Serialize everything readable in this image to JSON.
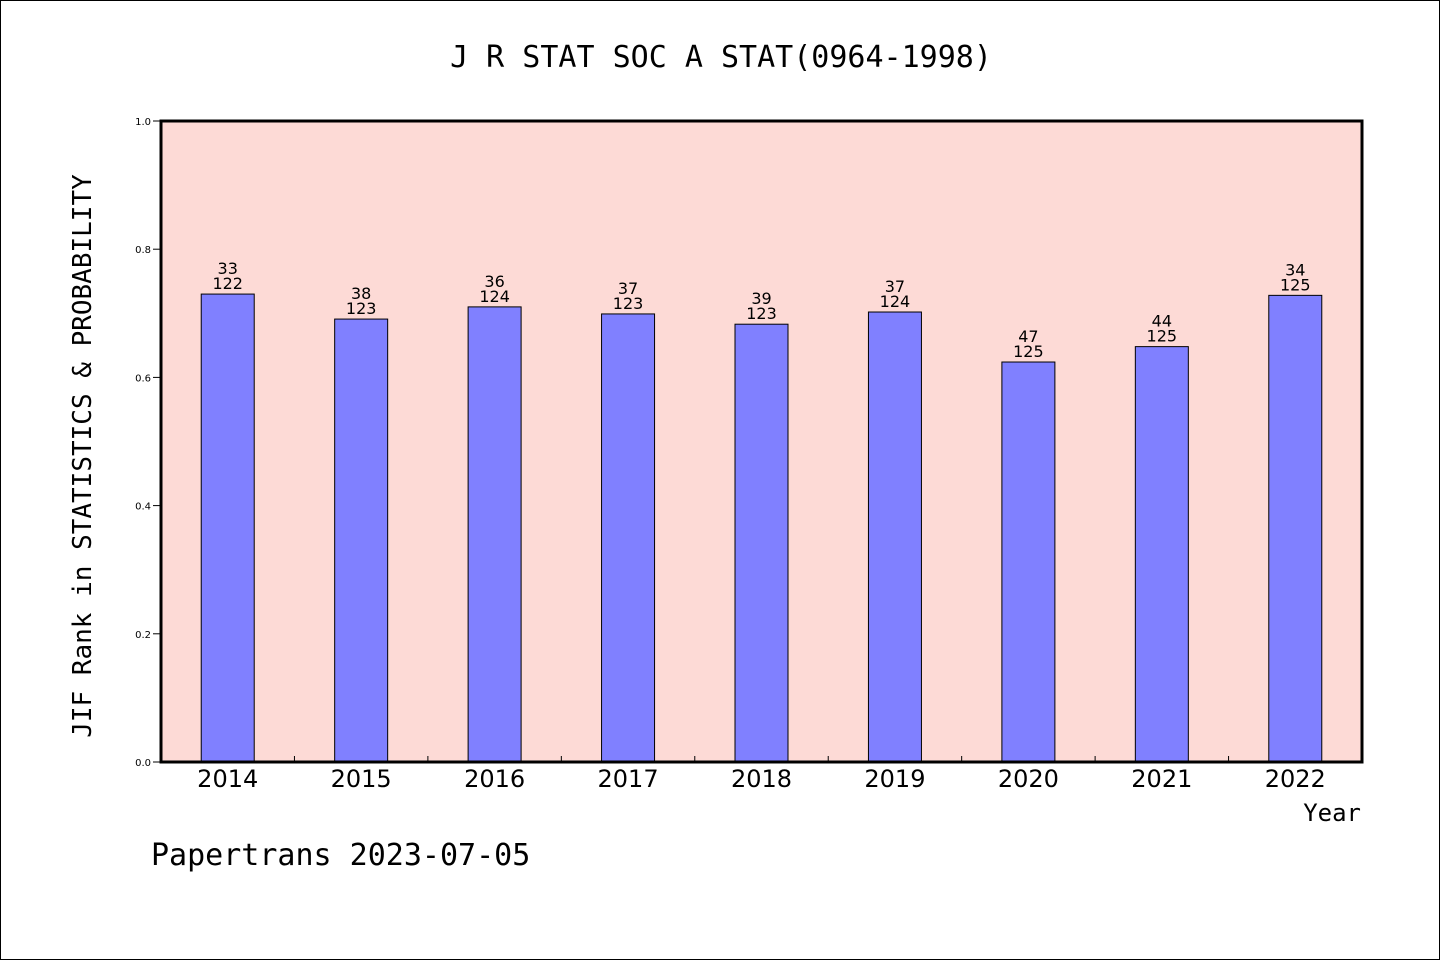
{
  "chart_data": {
    "type": "bar",
    "title": "J R STAT SOC A STAT(0964-1998)",
    "xlabel": "Year",
    "ylabel": "JIF Rank in STATISTICS & PROBABILITY",
    "ylim": [
      0,
      1.0
    ],
    "yticks": [
      "0.0",
      "0.2",
      "0.4",
      "0.6",
      "0.8",
      "1.0"
    ],
    "grid": false,
    "categories": [
      "2014",
      "2015",
      "2016",
      "2017",
      "2018",
      "2019",
      "2020",
      "2021",
      "2022"
    ],
    "values": [
      0.73,
      0.691,
      0.71,
      0.699,
      0.683,
      0.702,
      0.624,
      0.648,
      0.728
    ],
    "ranks": [
      "33",
      "38",
      "36",
      "37",
      "39",
      "37",
      "47",
      "44",
      "34"
    ],
    "totals": [
      "122",
      "123",
      "124",
      "123",
      "123",
      "124",
      "125",
      "125",
      "125"
    ],
    "colors": {
      "plot_background": "#fddad6",
      "bar_fill": "#8080ff",
      "bar_stroke": "#000000"
    }
  },
  "footer": "Papertrans 2023-07-05"
}
